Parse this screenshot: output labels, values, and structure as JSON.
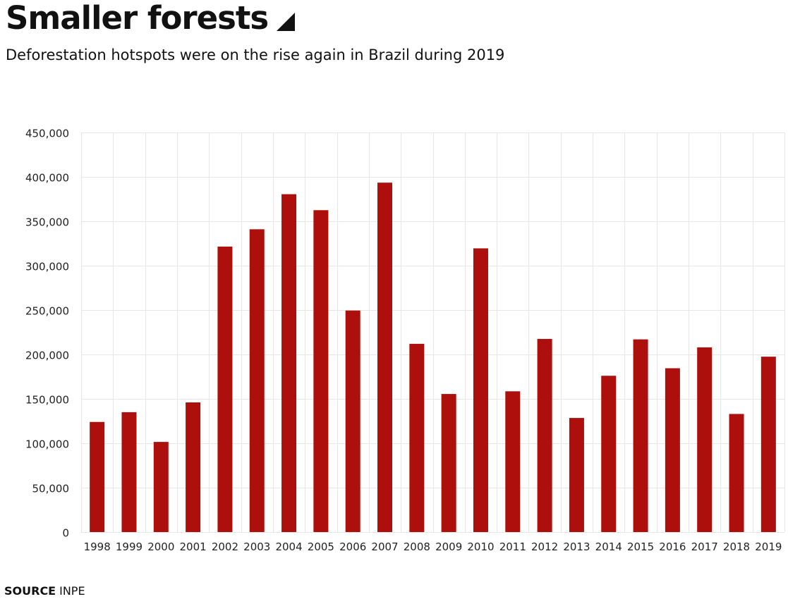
{
  "header": {
    "title": "Smaller forests",
    "subtitle": "Deforestation hotspots were on the rise again in Brazil during 2019"
  },
  "footer": {
    "source_label": "SOURCE",
    "source_value": "INPE"
  },
  "colors": {
    "bar": "#ad0f0c",
    "grid": "#e6e6e6",
    "text": "#111111"
  },
  "chart_data": {
    "type": "bar",
    "title": "Smaller forests",
    "subtitle": "Deforestation hotspots were on the rise again in Brazil during 2019",
    "xlabel": "",
    "ylabel": "",
    "ylim": [
      0,
      450000
    ],
    "yticks": [
      0,
      50000,
      100000,
      150000,
      200000,
      250000,
      300000,
      350000,
      400000,
      450000
    ],
    "ytick_labels": [
      "0",
      "50,000",
      "100,000",
      "150,000",
      "200,000",
      "250,000",
      "300,000",
      "350,000",
      "400,000",
      "450,000"
    ],
    "grid": true,
    "categories": [
      "1998",
      "1999",
      "2000",
      "2001",
      "2002",
      "2003",
      "2004",
      "2005",
      "2006",
      "2007",
      "2008",
      "2009",
      "2010",
      "2011",
      "2012",
      "2013",
      "2014",
      "2015",
      "2016",
      "2017",
      "2018",
      "2019"
    ],
    "values": [
      124000,
      135000,
      101500,
      146000,
      321500,
      341000,
      380500,
      362500,
      249500,
      393500,
      212000,
      155500,
      319500,
      158500,
      217500,
      128500,
      176000,
      217000,
      184500,
      208000,
      133000,
      197500
    ]
  }
}
